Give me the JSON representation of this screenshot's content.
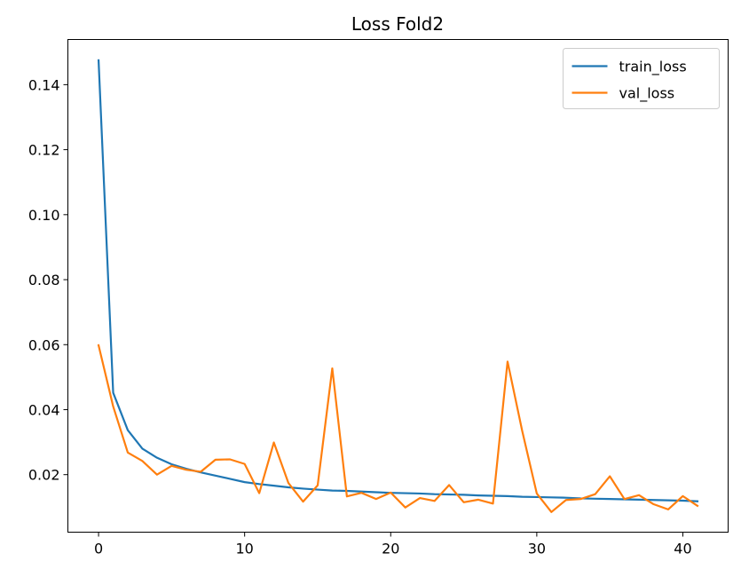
{
  "chart_data": {
    "type": "line",
    "title": "Loss Fold2",
    "xlabel": "",
    "ylabel": "",
    "xlim": [
      -2.1,
      43.1
    ],
    "ylim": [
      0.0023,
      0.1539
    ],
    "xticks": [
      0,
      10,
      20,
      30,
      40
    ],
    "yticks": [
      0.02,
      0.04,
      0.06,
      0.08,
      0.1,
      0.12,
      0.14
    ],
    "ytick_labels": [
      "0.02",
      "0.04",
      "0.06",
      "0.08",
      "0.10",
      "0.12",
      "0.14"
    ],
    "grid": false,
    "legend": "top-right",
    "series": [
      {
        "name": "train_loss",
        "color": "#1f77b4",
        "x": [
          0,
          1,
          2,
          3,
          4,
          5,
          6,
          7,
          8,
          9,
          10,
          11,
          12,
          13,
          14,
          15,
          16,
          17,
          18,
          19,
          20,
          21,
          22,
          23,
          24,
          25,
          26,
          27,
          28,
          29,
          30,
          31,
          32,
          33,
          34,
          35,
          36,
          37,
          38,
          39,
          40,
          41
        ],
        "values": [
          0.1475,
          0.0452,
          0.0337,
          0.028,
          0.0252,
          0.0232,
          0.0218,
          0.0207,
          0.0197,
          0.0187,
          0.0177,
          0.0171,
          0.0166,
          0.0161,
          0.0157,
          0.0154,
          0.0151,
          0.015,
          0.0148,
          0.0146,
          0.0144,
          0.0143,
          0.0142,
          0.014,
          0.0139,
          0.0138,
          0.0136,
          0.0135,
          0.0134,
          0.0132,
          0.0131,
          0.013,
          0.0129,
          0.0127,
          0.0126,
          0.0125,
          0.0124,
          0.0123,
          0.0122,
          0.0121,
          0.012,
          0.0118
        ]
      },
      {
        "name": "val_loss",
        "color": "#ff7f0e",
        "x": [
          0,
          1,
          2,
          3,
          4,
          5,
          6,
          7,
          8,
          9,
          10,
          11,
          12,
          13,
          14,
          15,
          16,
          17,
          18,
          19,
          20,
          21,
          22,
          23,
          24,
          25,
          26,
          27,
          28,
          29,
          30,
          31,
          32,
          33,
          34,
          35,
          36,
          37,
          38,
          39,
          40,
          41
        ],
        "values": [
          0.0598,
          0.041,
          0.0268,
          0.0242,
          0.02,
          0.0227,
          0.0215,
          0.0209,
          0.0246,
          0.0247,
          0.0233,
          0.0143,
          0.0299,
          0.0174,
          0.0117,
          0.0167,
          0.0527,
          0.0133,
          0.0144,
          0.0125,
          0.0145,
          0.0099,
          0.0128,
          0.0119,
          0.0168,
          0.0115,
          0.0123,
          0.0111,
          0.0548,
          0.0335,
          0.0142,
          0.0085,
          0.0122,
          0.0125,
          0.014,
          0.0195,
          0.0125,
          0.0137,
          0.0109,
          0.0093,
          0.0134,
          0.0104
        ]
      }
    ]
  }
}
